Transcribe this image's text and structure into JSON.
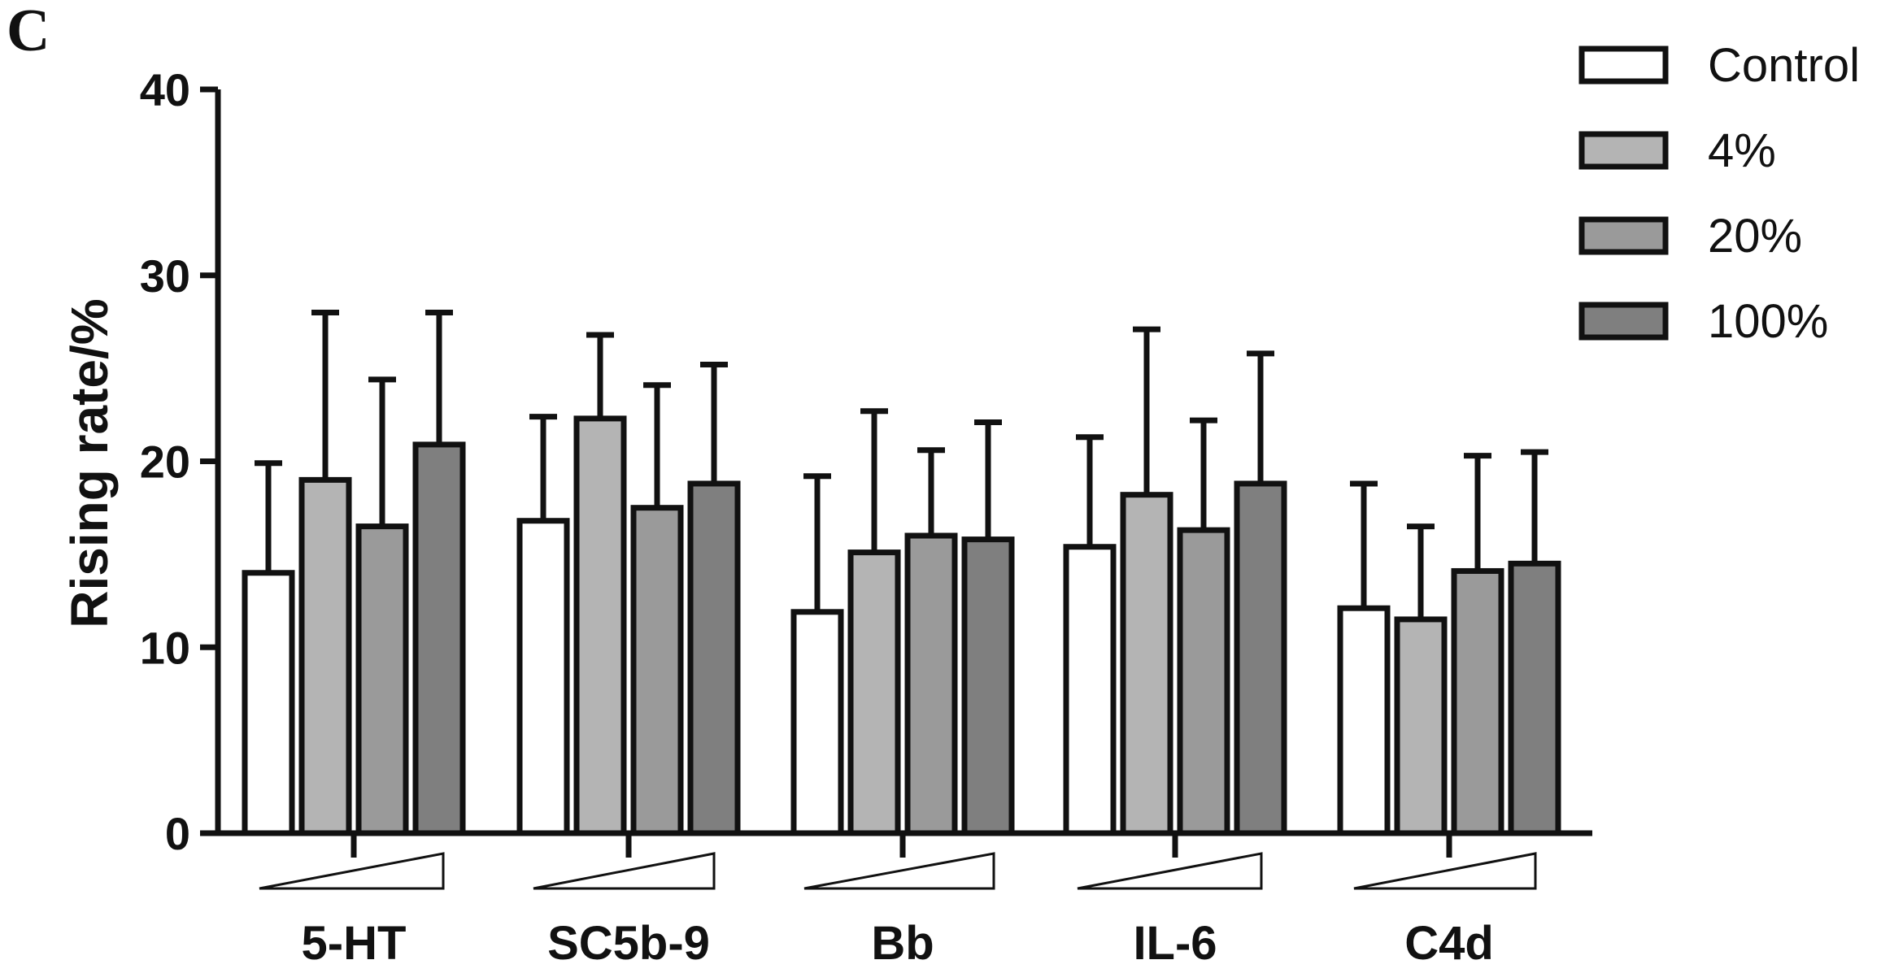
{
  "panel_label": "C",
  "chart_data": {
    "type": "bar",
    "title": "",
    "xlabel": "",
    "ylabel": "Rising rate/%",
    "ylim": [
      0,
      40
    ],
    "yticks": [
      0,
      10,
      20,
      30,
      40
    ],
    "categories": [
      "5-HT",
      "SC5b-9",
      "Bb",
      "IL-6",
      "C4d"
    ],
    "series": [
      {
        "name": "Control",
        "color": "#ffffff",
        "values": [
          14.0,
          16.8,
          11.9,
          15.4,
          12.1
        ],
        "errors": [
          5.9,
          5.6,
          7.3,
          5.9,
          6.7
        ]
      },
      {
        "name": "4%",
        "color": "#b4b4b4",
        "values": [
          19.0,
          22.3,
          15.1,
          18.2,
          11.5
        ],
        "errors": [
          9.0,
          4.5,
          7.6,
          8.9,
          5.0
        ]
      },
      {
        "name": "20%",
        "color": "#9a9a9a",
        "values": [
          16.5,
          17.5,
          16.0,
          16.3,
          14.1
        ],
        "errors": [
          7.9,
          6.6,
          4.6,
          5.9,
          6.2
        ]
      },
      {
        "name": "100%",
        "color": "#7f7f7f",
        "values": [
          20.9,
          18.8,
          15.8,
          18.8,
          14.5
        ],
        "errors": [
          7.1,
          6.4,
          6.3,
          7.0,
          6.0
        ]
      }
    ],
    "legend_position": "top-right",
    "grid": false,
    "concentration_wedge": true
  }
}
